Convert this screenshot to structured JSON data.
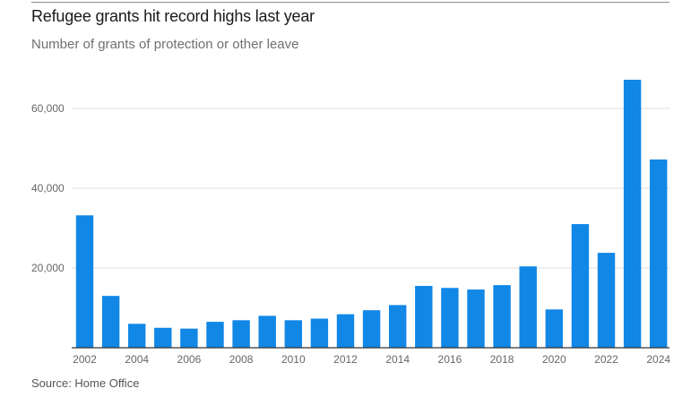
{
  "header": {
    "title": "Refugee grants hit record highs last year",
    "subtitle": "Number of grants of protection or other leave"
  },
  "footer": {
    "source": "Source: Home Office"
  },
  "colors": {
    "bar": "#1187e6",
    "grid": "#dcdcdc",
    "axis": "#333333"
  },
  "chart_data": {
    "type": "bar",
    "title": "Refugee grants hit record highs last year",
    "subtitle": "Number of grants of protection or other leave",
    "xlabel": "",
    "ylabel": "",
    "categories": [
      "2002",
      "2003",
      "2004",
      "2005",
      "2006",
      "2007",
      "2008",
      "2009",
      "2010",
      "2011",
      "2012",
      "2013",
      "2014",
      "2015",
      "2016",
      "2017",
      "2018",
      "2019",
      "2020",
      "2021",
      "2022",
      "2023",
      "2024"
    ],
    "values": [
      33200,
      13000,
      6000,
      5000,
      4800,
      6500,
      6900,
      8000,
      6900,
      7300,
      8400,
      9400,
      10700,
      15500,
      15000,
      14600,
      15700,
      20400,
      9600,
      31000,
      23800,
      67200,
      47200
    ],
    "x_tick_labels": [
      "2002",
      "2004",
      "2006",
      "2008",
      "2010",
      "2012",
      "2014",
      "2016",
      "2018",
      "2020",
      "2022",
      "2024"
    ],
    "y_ticks": [
      20000,
      40000,
      60000
    ],
    "y_tick_labels": [
      "20,000",
      "40,000",
      "60,000"
    ],
    "ylim": [
      0,
      70000
    ],
    "grid": true,
    "legend": "none"
  }
}
